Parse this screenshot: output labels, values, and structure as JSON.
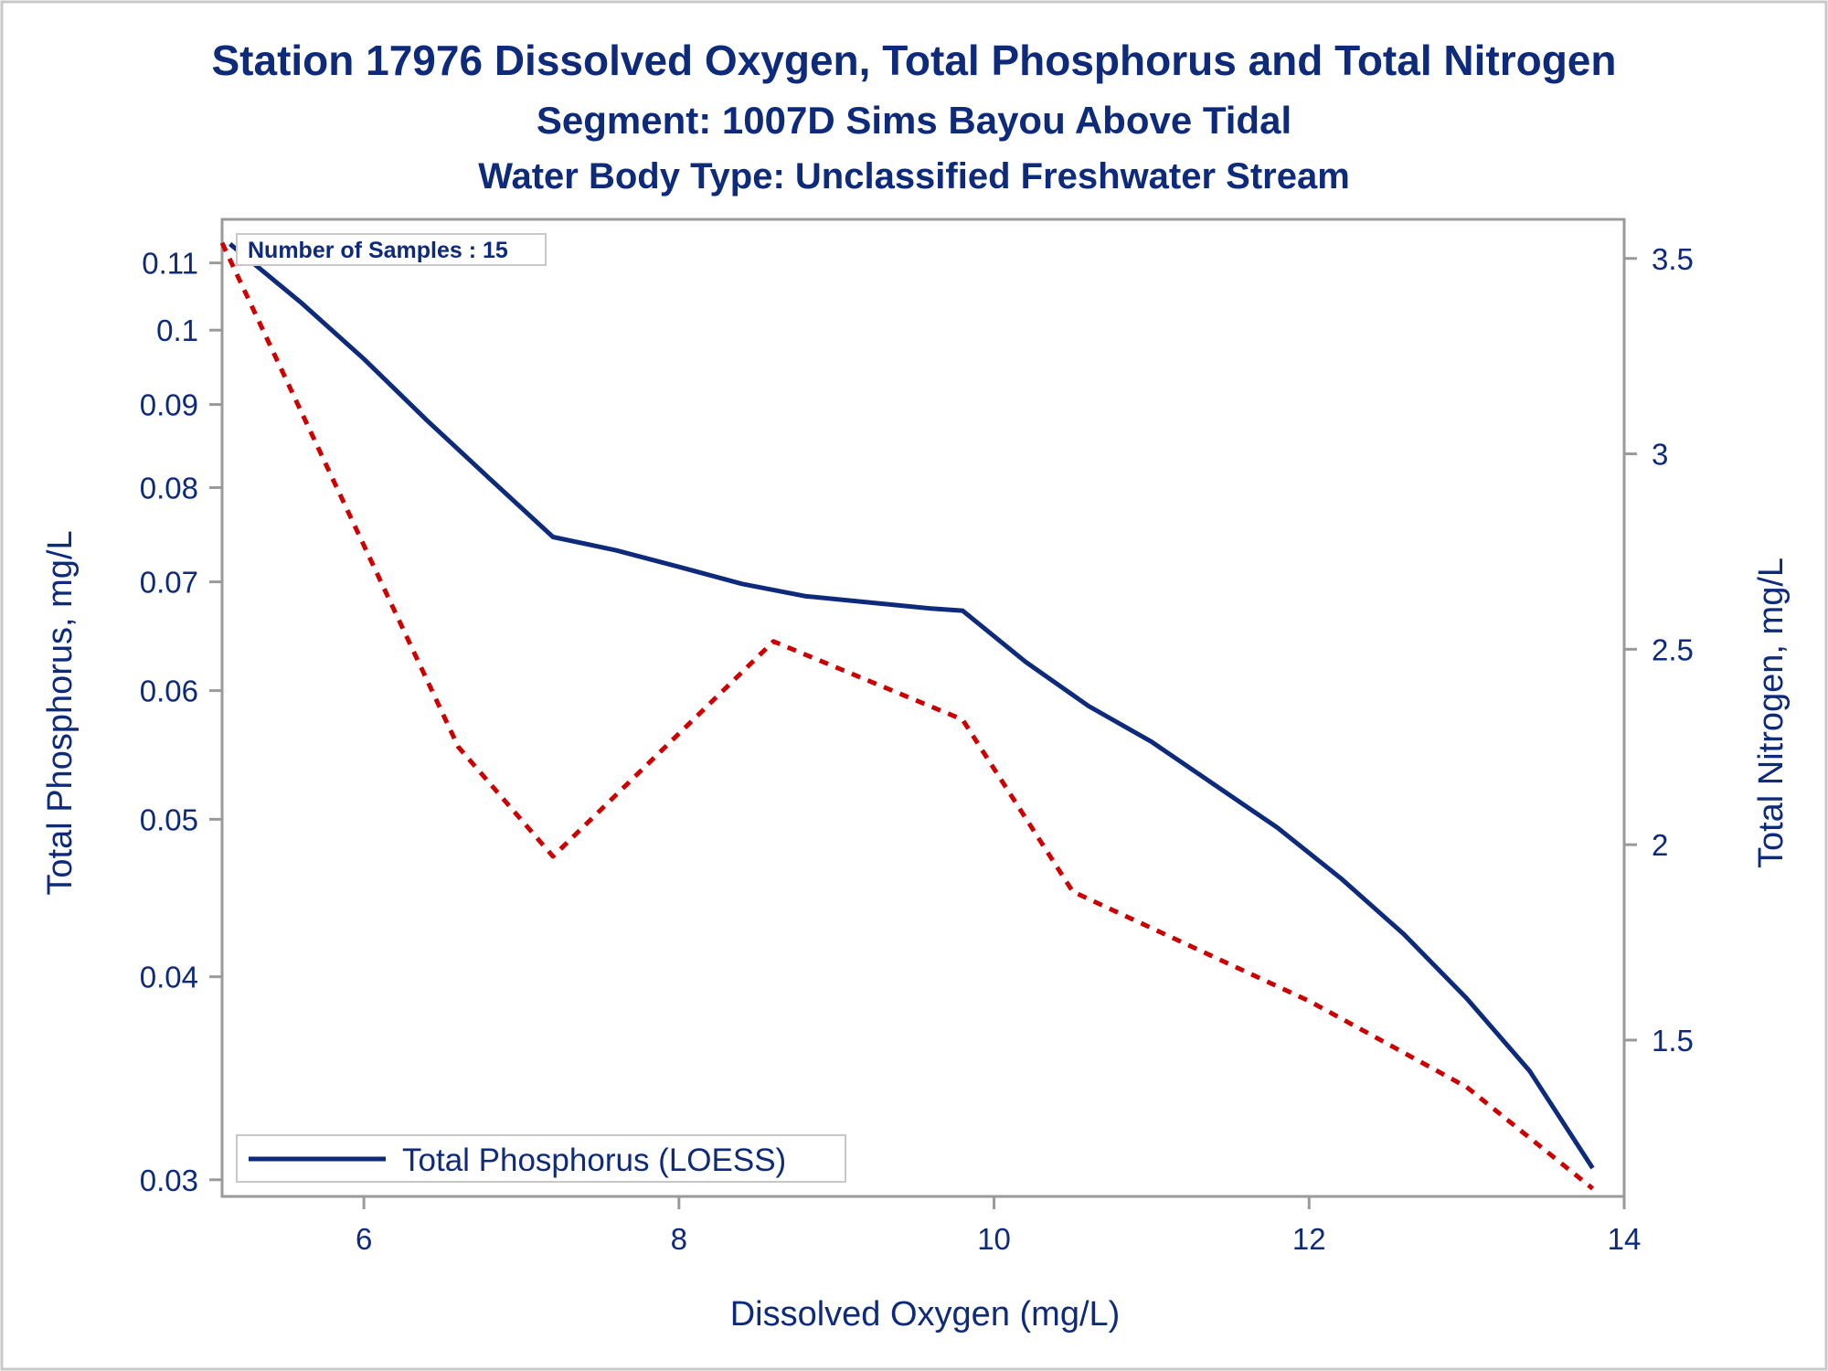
{
  "chart_data": {
    "type": "line",
    "title": "Station 17976  Dissolved Oxygen, Total Phosphorus and Total Nitrogen",
    "subtitle": "Segment: 1007D  Sims Bayou Above Tidal",
    "subtitle2": "Water Body Type: Unclassified Freshwater Stream",
    "annotation": "Number of Samples : 15",
    "xlabel": "Dissolved Oxygen (mg/L)",
    "ylabel_left": "Total Phosphorus, mg/L",
    "ylabel_right": "Total Nitrogen, mg/L",
    "xlim": [
      5.1,
      14.0
    ],
    "ylim_left": [
      0.0293,
      0.117
    ],
    "ylim_right": [
      1.1,
      3.6
    ],
    "y_left_scale": "log",
    "x_ticks": [
      "6",
      "8",
      "10",
      "12",
      "14"
    ],
    "y_left_ticks": [
      "0.03",
      "0.04",
      "0.05",
      "0.06",
      "0.07",
      "0.08",
      "0.09",
      "0.1",
      "0.11"
    ],
    "y_right_ticks": [
      "1.5",
      "2",
      "2.5",
      "3",
      "3.5"
    ],
    "legend": {
      "placement": "bottom-left",
      "label": "Total Phosphorus (LOESS)"
    },
    "colors": {
      "phosphorus": "#0e2a7a",
      "nitrogen": "#cc0000",
      "text": "#0e2a7a",
      "axis": "#9a9a9a"
    },
    "series": [
      {
        "name": "Total Phosphorus (LOESS)",
        "axis": "left",
        "style": "solid",
        "x": [
          5.15,
          5.6,
          6.0,
          6.4,
          6.8,
          7.2,
          7.6,
          8.0,
          8.4,
          8.8,
          9.2,
          9.6,
          9.8,
          10.2,
          10.6,
          11.0,
          11.4,
          11.8,
          12.2,
          12.6,
          13.0,
          13.4,
          13.8
        ],
        "y": [
          0.113,
          0.104,
          0.096,
          0.088,
          0.081,
          0.0746,
          0.0732,
          0.0715,
          0.0698,
          0.0686,
          0.068,
          0.0674,
          0.0672,
          0.0625,
          0.0587,
          0.0558,
          0.0525,
          0.0494,
          0.046,
          0.0425,
          0.0388,
          0.035,
          0.0305
        ]
      },
      {
        "name": "Total Nitrogen",
        "axis": "right",
        "style": "dashed",
        "x": [
          5.1,
          6.6,
          7.2,
          8.6,
          9.8,
          10.5,
          12.0,
          13.0,
          13.8
        ],
        "y": [
          3.54,
          2.25,
          1.97,
          2.52,
          2.32,
          1.88,
          1.6,
          1.38,
          1.12
        ]
      }
    ]
  }
}
